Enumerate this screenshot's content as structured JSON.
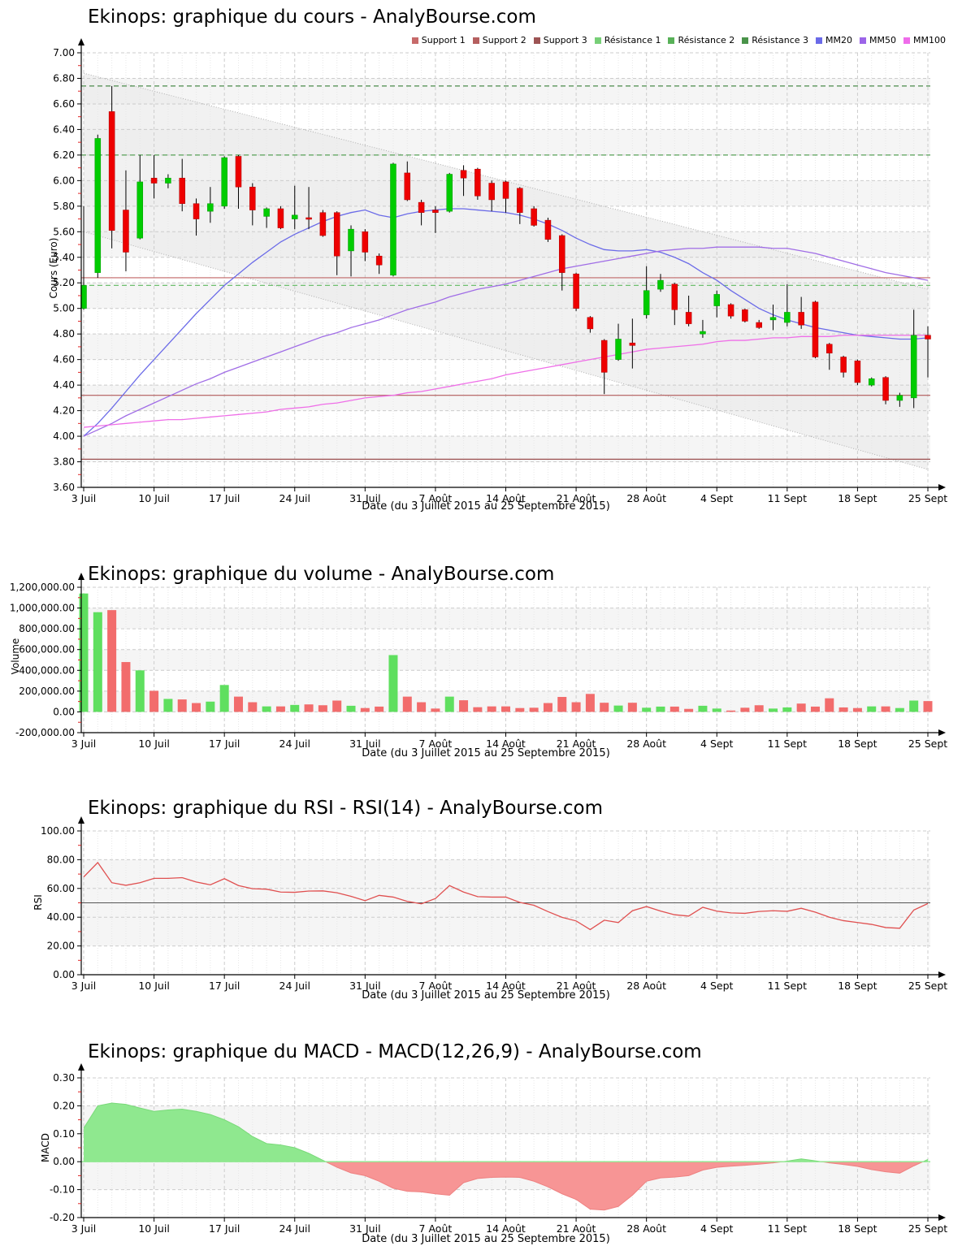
{
  "style": {
    "background": "#ffffff",
    "stripe": "#f5f5f5",
    "grid": "#cccccc",
    "daily_grid": "#e7e7e7",
    "axis": "#000000",
    "minor_tick": "#dd2222",
    "channel_fill": "#e9e9e9",
    "channel_line": "#b0b0b0",
    "candle_up": "#00cc00",
    "candle_up_edge": "#009900",
    "candle_down": "#ee0000",
    "candle_down_edge": "#aa0000",
    "wick": "#000000",
    "volume_up": "#5fdf5f",
    "volume_down": "#f26c6c",
    "rsi_line": "#e05050",
    "rsi_mid_line": "#555555",
    "macd_up_fill": "#8fe88f",
    "macd_up_line": "#79d979",
    "macd_down_fill": "#f79595",
    "macd_down_line": "#ee8080",
    "macd_zero_line": "#8fe88f"
  },
  "chart_data": [
    {
      "type": "candlestick",
      "title": "Ekinops: graphique du cours - AnalyBourse.com",
      "ylabel": "Cours (Euro)",
      "xlabel": "Date (du 3 Juillet 2015 au 25 Septembre 2015)",
      "ylim": [
        3.6,
        7.0
      ],
      "ytick_major": 0.2,
      "ytick_minor": 0.1,
      "grid": true,
      "legend_position": "top-right",
      "legend": [
        {
          "label": "Support 1",
          "color": "#c76a6a"
        },
        {
          "label": "Support 2",
          "color": "#b55f5f"
        },
        {
          "label": "Support 3",
          "color": "#9d5454"
        },
        {
          "label": "Résistance 1",
          "color": "#77cf77"
        },
        {
          "label": "Résistance 2",
          "color": "#58b158"
        },
        {
          "label": "Résistance 3",
          "color": "#4a934a"
        },
        {
          "label": "MM20",
          "color": "#6a6ae8"
        },
        {
          "label": "MM50",
          "color": "#9c64e8"
        },
        {
          "label": "MM100",
          "color": "#ef6cea"
        }
      ],
      "support_levels": [
        {
          "name": "Support 1",
          "value": 5.24,
          "color": "#c06666"
        },
        {
          "name": "Support 2",
          "value": 4.32,
          "color": "#b25a5a"
        },
        {
          "name": "Support 3",
          "value": 3.82,
          "color": "#9c5050"
        }
      ],
      "resistance_levels": [
        {
          "name": "Résistance 1",
          "value": 5.18,
          "color": "#6fbf6f"
        },
        {
          "name": "Résistance 2",
          "value": 6.2,
          "color": "#58a158"
        },
        {
          "name": "Résistance 3",
          "value": 6.74,
          "color": "#4a8a4a"
        }
      ],
      "channel": {
        "upper_start": 6.84,
        "upper_end": 5.15,
        "lower_start": 5.6,
        "lower_end": 3.74
      },
      "grey_bands": [
        [
          3.8,
          4.0
        ],
        [
          4.2,
          4.4
        ],
        [
          4.6,
          4.8
        ],
        [
          5.0,
          5.2
        ],
        [
          5.4,
          5.6
        ],
        [
          5.8,
          6.0
        ],
        [
          6.2,
          6.4
        ],
        [
          6.6,
          6.8
        ]
      ],
      "week_labels": [
        "3 Juil",
        "10 Juil",
        "17 Juil",
        "24 Juil",
        "31 Juil",
        "7 Août",
        "14 Août",
        "21 Août",
        "28 Août",
        "4 Sept",
        "11 Sept",
        "18 Sept",
        "25 Sept"
      ],
      "categories": [
        "3 Juil",
        "6 Juil",
        "7 Juil",
        "8 Juil",
        "9 Juil",
        "10 Juil",
        "13 Juil",
        "14 Juil",
        "15 Juil",
        "16 Juil",
        "17 Juil",
        "20 Juil",
        "21 Juil",
        "22 Juil",
        "23 Juil",
        "24 Juil",
        "27 Juil",
        "28 Juil",
        "29 Juil",
        "30 Juil",
        "31 Juil",
        "3 Août",
        "4 Août",
        "5 Août",
        "6 Août",
        "7 Août",
        "10 Août",
        "11 Août",
        "12 Août",
        "13 Août",
        "14 Août",
        "17 Août",
        "18 Août",
        "19 Août",
        "20 Août",
        "21 Août",
        "24 Août",
        "25 Août",
        "26 Août",
        "27 Août",
        "28 Août",
        "31 Août",
        "1 Sept",
        "2 Sept",
        "3 Sept",
        "4 Sept",
        "7 Sept",
        "8 Sept",
        "9 Sept",
        "10 Sept",
        "11 Sept",
        "14 Sept",
        "15 Sept",
        "16 Sept",
        "17 Sept",
        "18 Sept",
        "21 Sept",
        "22 Sept",
        "23 Sept",
        "24 Sept",
        "25 Sept"
      ],
      "candles_ohlc": [
        [
          5.0,
          5.8,
          4.99,
          5.18
        ],
        [
          5.28,
          6.36,
          5.24,
          6.33
        ],
        [
          6.54,
          6.74,
          5.47,
          5.61
        ],
        [
          5.77,
          6.08,
          5.29,
          5.44
        ],
        [
          5.55,
          6.2,
          5.54,
          5.99
        ],
        [
          6.02,
          6.2,
          5.86,
          5.98
        ],
        [
          5.98,
          6.05,
          5.94,
          6.02
        ],
        [
          6.02,
          6.17,
          5.76,
          5.82
        ],
        [
          5.82,
          5.86,
          5.57,
          5.7
        ],
        [
          5.76,
          5.95,
          5.67,
          5.82
        ],
        [
          5.8,
          6.19,
          5.78,
          6.18
        ],
        [
          6.19,
          6.2,
          5.78,
          5.95
        ],
        [
          5.95,
          5.98,
          5.65,
          5.77
        ],
        [
          5.72,
          5.79,
          5.63,
          5.78
        ],
        [
          5.78,
          5.8,
          5.62,
          5.63
        ],
        [
          5.7,
          5.96,
          5.62,
          5.73
        ],
        [
          5.71,
          5.95,
          5.62,
          5.7
        ],
        [
          5.75,
          5.77,
          5.56,
          5.57
        ],
        [
          5.75,
          5.76,
          5.26,
          5.41
        ],
        [
          5.45,
          5.65,
          5.25,
          5.62
        ],
        [
          5.6,
          5.62,
          5.37,
          5.44
        ],
        [
          5.41,
          5.43,
          5.27,
          5.34
        ],
        [
          5.26,
          6.14,
          5.25,
          6.13
        ],
        [
          6.06,
          6.15,
          5.84,
          5.85
        ],
        [
          5.83,
          5.85,
          5.65,
          5.75
        ],
        [
          5.77,
          5.8,
          5.59,
          5.75
        ],
        [
          5.76,
          6.06,
          5.75,
          6.05
        ],
        [
          6.08,
          6.12,
          5.88,
          6.02
        ],
        [
          6.09,
          6.1,
          5.85,
          5.88
        ],
        [
          5.98,
          6.0,
          5.76,
          5.85
        ],
        [
          5.99,
          6.0,
          5.75,
          5.86
        ],
        [
          5.94,
          5.95,
          5.66,
          5.75
        ],
        [
          5.78,
          5.8,
          5.64,
          5.65
        ],
        [
          5.69,
          5.71,
          5.52,
          5.54
        ],
        [
          5.57,
          5.58,
          5.14,
          5.28
        ],
        [
          5.27,
          5.28,
          4.98,
          5.0
        ],
        [
          4.93,
          4.94,
          4.81,
          4.84
        ],
        [
          4.75,
          4.76,
          4.33,
          4.5
        ],
        [
          4.6,
          4.88,
          4.59,
          4.76
        ],
        [
          4.73,
          4.92,
          4.53,
          4.71
        ],
        [
          4.95,
          5.33,
          4.92,
          5.14
        ],
        [
          5.15,
          5.27,
          5.13,
          5.22
        ],
        [
          5.19,
          5.2,
          4.87,
          4.99
        ],
        [
          4.97,
          5.1,
          4.86,
          4.88
        ],
        [
          4.8,
          4.91,
          4.77,
          4.82
        ],
        [
          5.02,
          5.14,
          4.93,
          5.11
        ],
        [
          5.03,
          5.04,
          4.92,
          4.94
        ],
        [
          4.99,
          5.0,
          4.89,
          4.9
        ],
        [
          4.89,
          4.91,
          4.84,
          4.85
        ],
        [
          4.91,
          5.03,
          4.83,
          4.93
        ],
        [
          4.89,
          5.19,
          4.86,
          4.97
        ],
        [
          4.97,
          5.09,
          4.84,
          4.87
        ],
        [
          5.05,
          5.06,
          4.61,
          4.62
        ],
        [
          4.72,
          4.73,
          4.52,
          4.65
        ],
        [
          4.62,
          4.63,
          4.46,
          4.5
        ],
        [
          4.59,
          4.6,
          4.4,
          4.42
        ],
        [
          4.4,
          4.46,
          4.39,
          4.45
        ],
        [
          4.46,
          4.47,
          4.25,
          4.28
        ],
        [
          4.28,
          4.34,
          4.23,
          4.32
        ],
        [
          4.3,
          4.99,
          4.22,
          4.79
        ],
        [
          4.79,
          4.86,
          4.46,
          4.76
        ]
      ],
      "mm20": [
        4.0,
        4.1,
        4.22,
        4.35,
        4.48,
        4.6,
        4.72,
        4.84,
        4.96,
        5.07,
        5.18,
        5.27,
        5.36,
        5.44,
        5.52,
        5.58,
        5.63,
        5.68,
        5.72,
        5.75,
        5.77,
        5.73,
        5.71,
        5.74,
        5.76,
        5.77,
        5.78,
        5.78,
        5.77,
        5.76,
        5.75,
        5.73,
        5.7,
        5.66,
        5.61,
        5.55,
        5.5,
        5.46,
        5.45,
        5.45,
        5.46,
        5.44,
        5.4,
        5.35,
        5.28,
        5.22,
        5.14,
        5.07,
        5.0,
        4.95,
        4.91,
        4.88,
        4.85,
        4.83,
        4.81,
        4.79,
        4.78,
        4.77,
        4.76,
        4.76,
        4.77
      ],
      "mm50": [
        4.0,
        4.05,
        4.1,
        4.16,
        4.21,
        4.26,
        4.31,
        4.36,
        4.41,
        4.45,
        4.5,
        4.54,
        4.58,
        4.62,
        4.66,
        4.7,
        4.74,
        4.78,
        4.81,
        4.85,
        4.88,
        4.91,
        4.95,
        4.99,
        5.02,
        5.05,
        5.09,
        5.12,
        5.15,
        5.17,
        5.19,
        5.22,
        5.25,
        5.28,
        5.31,
        5.33,
        5.35,
        5.37,
        5.39,
        5.41,
        5.43,
        5.45,
        5.46,
        5.47,
        5.47,
        5.48,
        5.48,
        5.48,
        5.48,
        5.47,
        5.47,
        5.45,
        5.43,
        5.4,
        5.37,
        5.34,
        5.31,
        5.28,
        5.26,
        5.24,
        5.22
      ],
      "mm100": [
        4.07,
        4.08,
        4.09,
        4.1,
        4.11,
        4.12,
        4.13,
        4.13,
        4.14,
        4.15,
        4.16,
        4.17,
        4.18,
        4.19,
        4.21,
        4.22,
        4.23,
        4.25,
        4.26,
        4.28,
        4.3,
        4.31,
        4.32,
        4.34,
        4.35,
        4.37,
        4.39,
        4.41,
        4.43,
        4.45,
        4.48,
        4.5,
        4.52,
        4.54,
        4.56,
        4.58,
        4.6,
        4.62,
        4.64,
        4.66,
        4.68,
        4.69,
        4.7,
        4.71,
        4.72,
        4.74,
        4.75,
        4.75,
        4.76,
        4.77,
        4.77,
        4.78,
        4.78,
        4.78,
        4.79,
        4.79,
        4.79,
        4.79,
        4.79,
        4.79,
        4.79
      ]
    },
    {
      "type": "bar",
      "title": "Ekinops: graphique du volume - AnalyBourse.com",
      "ylabel": "Volume",
      "xlabel": "Date (du 3 Juillet 2015 au 25 Septembre 2015)",
      "ylim": [
        -200000,
        1200000
      ],
      "ytick_major": 200000,
      "ytick_minor": 100000,
      "grid": true,
      "x_alignment": "daily, aligned to cours categories",
      "grey_bands": [
        [
          0,
          200000
        ],
        [
          400000,
          600000
        ],
        [
          800000,
          1000000
        ]
      ],
      "week_labels": [
        "3 Juil",
        "10 Juil",
        "17 Juil",
        "24 Juil",
        "31 Juil",
        "7 Août",
        "14 Août",
        "21 Août",
        "28 Août",
        "4 Sept",
        "11 Sept",
        "18 Sept",
        "25 Sept"
      ],
      "values": [
        1140000,
        960000,
        980000,
        480000,
        400000,
        203000,
        125000,
        120000,
        85000,
        99000,
        259000,
        147000,
        93000,
        53000,
        53000,
        67000,
        72000,
        64000,
        109000,
        59000,
        37000,
        51000,
        547000,
        147000,
        93000,
        32000,
        147000,
        112000,
        45000,
        53000,
        53000,
        37000,
        40000,
        85000,
        144000,
        93000,
        173000,
        88000,
        61000,
        88000,
        40000,
        51000,
        51000,
        29000,
        59000,
        32000,
        13000,
        40000,
        64000,
        32000,
        43000,
        80000,
        51000,
        131000,
        43000,
        37000,
        53000,
        53000,
        37000,
        109000,
        104000
      ]
    },
    {
      "type": "line",
      "title": "Ekinops: graphique du RSI - RSI(14) - AnalyBourse.com",
      "ylabel": "RSI",
      "xlabel": "Date (du 3 Juillet 2015 au 25 Septembre 2015)",
      "ylim": [
        0,
        100
      ],
      "ytick_major": 20,
      "ytick_minor": 10,
      "grid": true,
      "mid_line": 50,
      "x_alignment": "daily, aligned to cours categories",
      "grey_bands": [
        [
          20,
          80
        ]
      ],
      "week_labels": [
        "3 Juil",
        "10 Juil",
        "17 Juil",
        "24 Juil",
        "31 Juil",
        "7 Août",
        "14 Août",
        "21 Août",
        "28 Août",
        "4 Sept",
        "11 Sept",
        "18 Sept",
        "25 Sept"
      ],
      "values": [
        68,
        78,
        64,
        62.2,
        64,
        67,
        67,
        67.5,
        64.5,
        62.5,
        66.8,
        62,
        59.8,
        59.5,
        57.5,
        57.3,
        58.2,
        58.3,
        57,
        54.5,
        51.5,
        55.2,
        54,
        51,
        49.3,
        53,
        62,
        57.5,
        54.3,
        54,
        54,
        50.3,
        48.3,
        43.9,
        39.9,
        37.4,
        31.4,
        37.9,
        36.3,
        44.5,
        47.4,
        44.3,
        41.7,
        40.8,
        46.9,
        44.2,
        43,
        42.7,
        44,
        44.5,
        44.1,
        46.2,
        43.5,
        40,
        37.6,
        36.3,
        35,
        32.8,
        32.3,
        45,
        49.5
      ]
    },
    {
      "type": "area",
      "title": "Ekinops: graphique du MACD - MACD(12,26,9) - AnalyBourse.com",
      "ylabel": "MACD",
      "xlabel": "Date (du 3 Juillet 2015 au 25 Septembre 2015)",
      "ylim": [
        -0.2,
        0.3
      ],
      "ytick_major": 0.1,
      "ytick_minor": 0.05,
      "grid": true,
      "zero_line": 0,
      "x_alignment": "daily, aligned to cours categories",
      "grey_bands": [
        [
          -0.1,
          0
        ],
        [
          0.1,
          0.2
        ]
      ],
      "week_labels": [
        "3 Juil",
        "10 Juil",
        "17 Juil",
        "24 Juil",
        "31 Juil",
        "7 Août",
        "14 Août",
        "21 Août",
        "28 Août",
        "4 Sept",
        "11 Sept",
        "18 Sept",
        "25 Sept"
      ],
      "values": [
        0.12,
        0.2,
        0.21,
        0.205,
        0.192,
        0.18,
        0.185,
        0.188,
        0.18,
        0.169,
        0.15,
        0.125,
        0.09,
        0.065,
        0.06,
        0.05,
        0.03,
        0.005,
        -0.02,
        -0.04,
        -0.05,
        -0.07,
        -0.095,
        -0.106,
        -0.108,
        -0.115,
        -0.12,
        -0.075,
        -0.06,
        -0.056,
        -0.055,
        -0.056,
        -0.07,
        -0.09,
        -0.115,
        -0.135,
        -0.17,
        -0.173,
        -0.16,
        -0.12,
        -0.07,
        -0.058,
        -0.055,
        -0.05,
        -0.03,
        -0.02,
        -0.016,
        -0.013,
        -0.009,
        -0.004,
        0.002,
        0.01,
        0.003,
        -0.004,
        -0.01,
        -0.017,
        -0.028,
        -0.036,
        -0.041,
        -0.015,
        0.008
      ]
    }
  ]
}
